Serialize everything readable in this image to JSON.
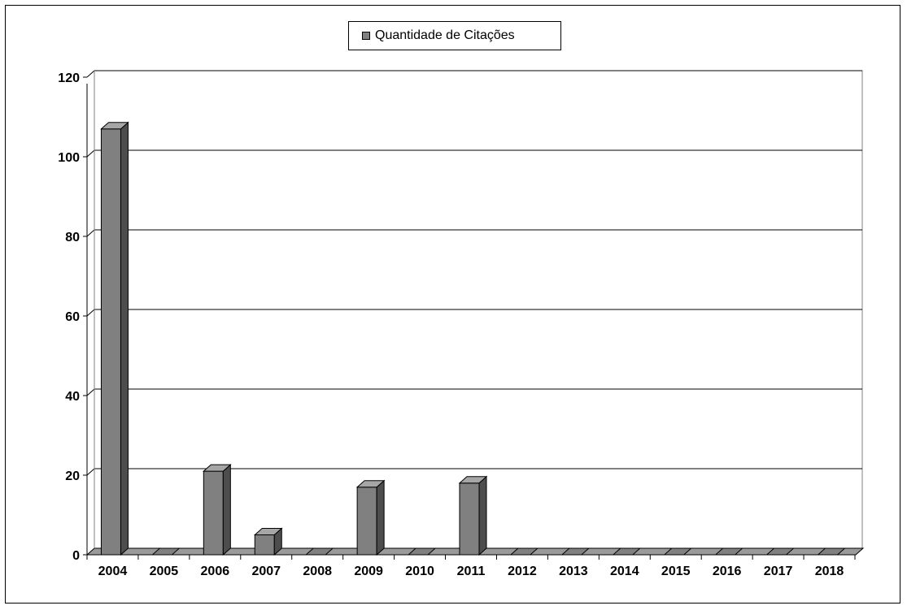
{
  "chart_data": {
    "type": "bar",
    "categories": [
      "2004",
      "2005",
      "2006",
      "2007",
      "2008",
      "2009",
      "2010",
      "2011",
      "2012",
      "2013",
      "2014",
      "2015",
      "2016",
      "2017",
      "2018"
    ],
    "series": [
      {
        "name": "Quantidade de Citações",
        "values": [
          107,
          0,
          21,
          5,
          0,
          17,
          0,
          18,
          0,
          0,
          0,
          0,
          0,
          0,
          0
        ]
      }
    ],
    "title": "",
    "xlabel": "",
    "ylabel": "",
    "ylim": [
      0,
      120
    ],
    "yticks": [
      "0",
      "20",
      "40",
      "60",
      "80",
      "100",
      "120"
    ],
    "grid": true,
    "legend_position": "top-center",
    "colors": {
      "bar_front": "#808080",
      "bar_side": "#4d4d4d",
      "bar_top": "#a6a6a6",
      "floor": "#9a9a9a"
    }
  }
}
